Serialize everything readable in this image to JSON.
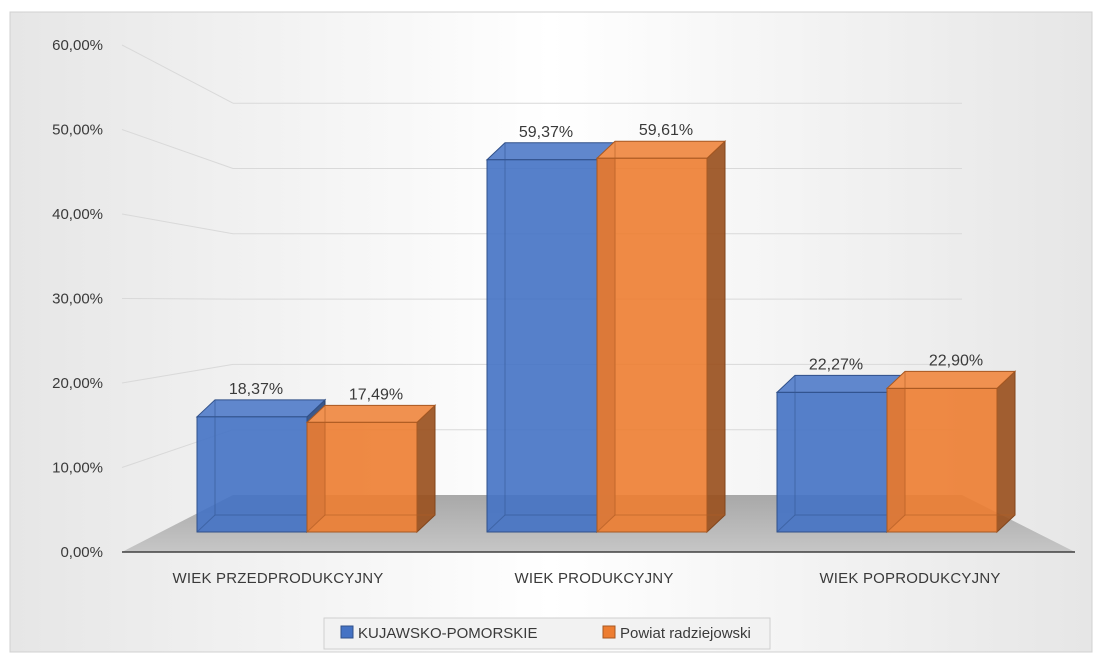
{
  "chart_data": {
    "type": "bar",
    "categories": [
      "WIEK PRZEDPRODUKCYJNY",
      "WIEK PRODUKCYJNY",
      "WIEK POPRODUKCYJNY"
    ],
    "series": [
      {
        "name": "KUJAWSKO-POMORSKIE",
        "values": [
          18.37,
          59.37,
          22.27
        ],
        "labels": [
          "18,37%",
          "59,37%",
          "22,27%"
        ],
        "color": "#4472C4"
      },
      {
        "name": "Powiat radziejowski",
        "values": [
          17.49,
          59.61,
          22.9
        ],
        "labels": [
          "17,49%",
          "59,61%",
          "22,90%"
        ],
        "color": "#ED7D31"
      }
    ],
    "y_ticks": [
      "0,00%",
      "10,00%",
      "20,00%",
      "30,00%",
      "40,00%",
      "50,00%",
      "60,00%"
    ],
    "ylim": [
      0,
      60
    ],
    "grid": true,
    "legend_position": "bottom",
    "style": "3d-clustered-column"
  }
}
